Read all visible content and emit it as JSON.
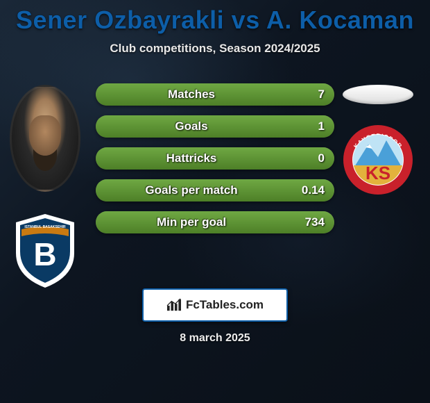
{
  "title": "Sener Ozbayrakli vs A. Kocaman",
  "subtitle": "Club competitions, Season 2024/2025",
  "date": "8 march 2025",
  "colors": {
    "title": "#0d5ea8",
    "bar_fill_start": "#6fa843",
    "bar_fill_end": "#4d7f27",
    "bar_bg": "#555b5e",
    "brand_border": "#0d5ea8",
    "text": "#ffffff"
  },
  "stats": [
    {
      "label": "Matches",
      "value": "7",
      "fill_pct": 100
    },
    {
      "label": "Goals",
      "value": "1",
      "fill_pct": 100
    },
    {
      "label": "Hattricks",
      "value": "0",
      "fill_pct": 100
    },
    {
      "label": "Goals per match",
      "value": "0.14",
      "fill_pct": 100
    },
    {
      "label": "Min per goal",
      "value": "734",
      "fill_pct": 100
    }
  ],
  "left": {
    "player_name": "Sener Ozbayrakli",
    "club": "Istanbul Basaksehir",
    "club_badge": {
      "outer": "#ffffff",
      "inner": "#0a3a64",
      "banner": "#c97a12",
      "letter": "B",
      "banner_text": "ISTANBUL BASAKSEHIR"
    }
  },
  "right": {
    "player_name": "A. Kocaman",
    "club": "Kayserispor",
    "club_badge": {
      "ring": "#c9212b",
      "inner": "#ffffff",
      "mountain": "#4aa0d8",
      "sky": "#bfe3f5",
      "letters": "KS",
      "ring_text_top": "KAYSERISPOR"
    }
  },
  "brand": {
    "text": "FcTables.com"
  }
}
